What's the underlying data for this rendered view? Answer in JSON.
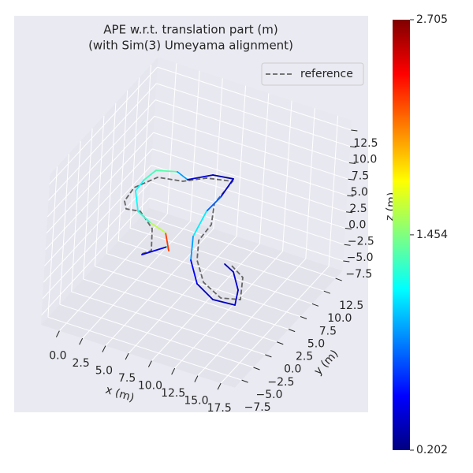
{
  "chart_data": {
    "type": "line3d",
    "title": "APE w.r.t. translation part (m)",
    "subtitle": "(with Sim(3) Umeyama alignment)",
    "x_label": "x (m)",
    "y_label": "y (m)",
    "z_label": "z (m)",
    "xlim": [
      -2,
      19
    ],
    "ylim": [
      -9,
      14
    ],
    "zlim": [
      -9,
      14
    ],
    "xticks": [
      {
        "value": 0,
        "label": "0.0"
      },
      2.5,
      {
        "value": 5,
        "label": "5.0"
      },
      7.5,
      {
        "value": 10,
        "label": "10.0"
      },
      12.5,
      {
        "value": 15,
        "label": "15.0"
      },
      17.5
    ],
    "yticks": [
      {
        "value": -7.5,
        "label": "−7.5"
      },
      {
        "value": -5,
        "label": "−5.0"
      },
      {
        "value": -2.5,
        "label": "−2.5"
      },
      {
        "value": 0,
        "label": "0.0"
      },
      2.5,
      {
        "value": 5,
        "label": "5.0"
      },
      7.5,
      {
        "value": 10,
        "label": "10.0"
      },
      12.5
    ],
    "zticks": [
      {
        "value": -7.5,
        "label": "−7.5"
      },
      {
        "value": -5,
        "label": "−5.0"
      },
      {
        "value": -2.5,
        "label": "−2.5"
      },
      {
        "value": 0,
        "label": "0.0"
      },
      2.5,
      {
        "value": 5,
        "label": "5.0"
      },
      7.5,
      {
        "value": 10,
        "label": "10.0"
      },
      12.5
    ],
    "grid": true,
    "legend": "upper right",
    "trajectory": {
      "x": [
        5.25,
        6.75,
        7.19,
        5.53,
        3.42,
        1.59,
        -0.19,
        -0.31,
        -0.05,
        1.84,
        3.3,
        5.05,
        7.06,
        7.4,
        7.31,
        8.13,
        9.76,
        12.1,
        14.63,
        16.9,
        16.01,
        14.22,
        12.89
      ],
      "y": [
        -2.51,
        -0.08,
        -0.6,
        1.99,
        2.77,
        3.86,
        6.84,
        8.94,
        10.95,
        11.76,
        11.07,
        13.03,
        13.44,
        10.07,
        7.23,
        2.75,
        -0.94,
        -4.21,
        -5.82,
        -5.57,
        -3.15,
        -0.64,
        0.13
      ],
      "z": [
        0,
        0,
        0,
        0,
        0,
        0,
        0,
        0,
        0,
        0,
        0,
        0,
        0,
        0,
        0,
        0,
        0,
        0,
        0,
        0,
        0,
        0,
        0
      ],
      "values": [
        0.5,
        0.4,
        2.6,
        1.9,
        1.3,
        1.2,
        1.1,
        1.2,
        1.4,
        1.3,
        0.5,
        0.3,
        0.3,
        0.5,
        1.0,
        1.2,
        0.6,
        0.4,
        0.3,
        0.4,
        0.4,
        0.4,
        0.3
      ]
    },
    "reference": {
      "name": "reference",
      "color": "#666666",
      "x": [
        5.19,
        5.74,
        4.11,
        1.79,
        0.42,
        -0.32,
        -0.56,
        0.62,
        3.03,
        4.76,
        7.18,
        7.36,
        8.74,
        8.9,
        10.28,
        12.51,
        15.17,
        16.93,
        15.43,
        13.35
      ],
      "y": [
        -2.39,
        -1.45,
        1.93,
        3.97,
        3.64,
        4.75,
        7.24,
        9.96,
        10.6,
        12.24,
        13.04,
        8.81,
        5.43,
        2.43,
        -0.63,
        -3.66,
        -5.2,
        -4.47,
        -1.01,
        0.4
      ],
      "z": [
        0,
        0,
        0,
        0,
        0,
        0,
        0,
        0,
        0,
        0,
        0,
        0,
        0,
        0,
        0,
        0,
        0,
        0,
        0,
        0
      ]
    },
    "colorbar": {
      "colormap": "jet",
      "lim": [
        0.202,
        2.705
      ],
      "ticks": [
        0.202,
        1.454,
        2.705
      ]
    }
  }
}
